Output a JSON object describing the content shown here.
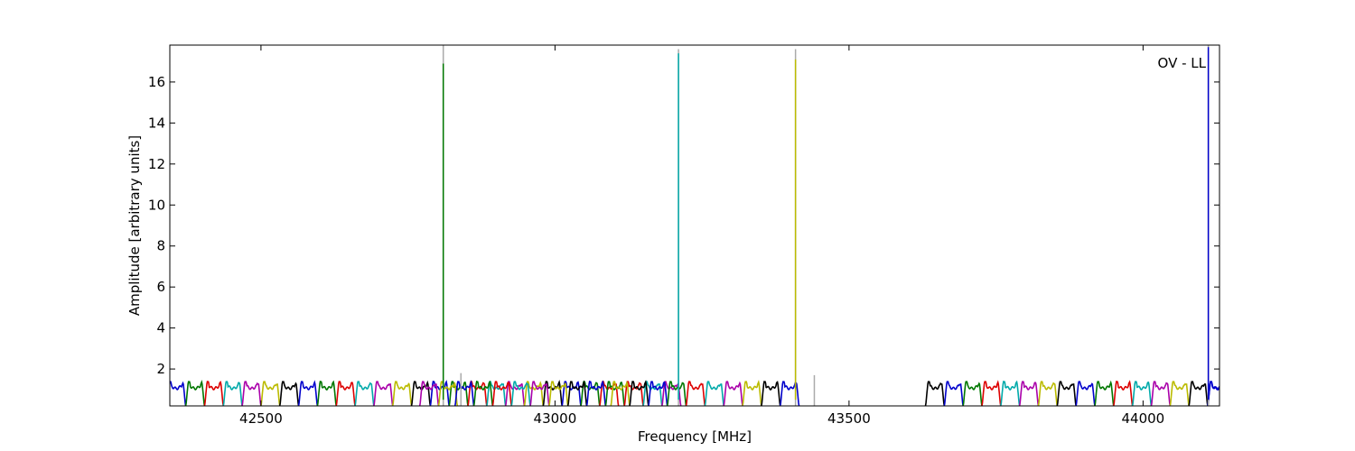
{
  "chart_data": {
    "type": "line",
    "title": "",
    "xlabel": "Frequency [MHz]",
    "ylabel": "Amplitude [arbitrary units]",
    "annotation": "OV - LL",
    "xlim": [
      42345,
      44130
    ],
    "ylim": [
      0.2,
      17.8
    ],
    "grid": false,
    "legend": "none",
    "xticks": [
      42500,
      43000,
      43500,
      44000
    ],
    "yticks": [
      2,
      4,
      6,
      8,
      10,
      12,
      14,
      16
    ],
    "colors": [
      "#0000cc",
      "#007700",
      "#dd0000",
      "#00aaaa",
      "#aa00aa",
      "#bbbb00",
      "#000000"
    ],
    "passband": {
      "width_mhz": 32,
      "base": 0.2,
      "peak": 1.25,
      "edge_min": 0.85
    },
    "channel_groups": [
      {
        "start": 42340,
        "count": 24,
        "color_offset": 0
      },
      {
        "start": 42770,
        "count": 2,
        "color_offset": 4
      },
      {
        "start": 42830,
        "count": 12,
        "color_offset": 0
      },
      {
        "start": 43095,
        "count": 10,
        "color_offset": 5
      },
      {
        "start": 43630,
        "count": 16,
        "color_offset": 6
      },
      {
        "start": 44110,
        "count": 1,
        "color_offset": 0
      }
    ],
    "peaks": [
      {
        "x": 42810,
        "y": 16.9,
        "color": "#007700"
      },
      {
        "x": 43210,
        "y": 17.4,
        "color": "#00aaaa"
      },
      {
        "x": 43409,
        "y": 17.1,
        "color": "#bbbb00"
      },
      {
        "x": 44111,
        "y": 17.7,
        "color": "#0000cc"
      }
    ],
    "gray_spikes": [
      {
        "x": 42810,
        "y": 17.8
      },
      {
        "x": 42840,
        "y": 1.8
      },
      {
        "x": 43210,
        "y": 17.6
      },
      {
        "x": 43409,
        "y": 17.6
      },
      {
        "x": 43441,
        "y": 1.7
      },
      {
        "x": 44111,
        "y": 17.8
      }
    ]
  }
}
